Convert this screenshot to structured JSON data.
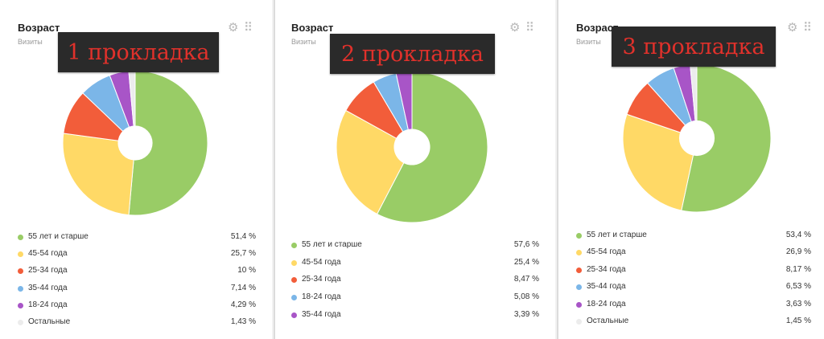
{
  "colors": {
    "green": "#99cc66",
    "yellow": "#ffd966",
    "red": "#f25d3a",
    "blue": "#7bb6e8",
    "purple": "#a855c7",
    "lightgray": "#ececec"
  },
  "chart_data": [
    {
      "type": "pie",
      "title": "Возраст",
      "subtitle": "Визиты",
      "overlay_label": "1 прокладка",
      "legend_position": "bottom",
      "slices": [
        {
          "name": "55 лет и старше",
          "value": 51.4,
          "display": "51,4 %",
          "color": "#99cc66"
        },
        {
          "name": "45-54 года",
          "value": 25.7,
          "display": "25,7 %",
          "color": "#ffd966"
        },
        {
          "name": "25-34 года",
          "value": 10,
          "display": "10 %",
          "color": "#f25d3a"
        },
        {
          "name": "35-44 года",
          "value": 7.14,
          "display": "7,14 %",
          "color": "#7bb6e8"
        },
        {
          "name": "18-24 года",
          "value": 4.29,
          "display": "4,29 %",
          "color": "#a855c7"
        },
        {
          "name": "Остальные",
          "value": 1.43,
          "display": "1,43 %",
          "color": "#ececec"
        }
      ]
    },
    {
      "type": "pie",
      "title": "Возраст",
      "subtitle": "Визиты",
      "overlay_label": "2 прокладка",
      "legend_position": "bottom",
      "slices": [
        {
          "name": "55 лет и старше",
          "value": 57.6,
          "display": "57,6 %",
          "color": "#99cc66"
        },
        {
          "name": "45-54 года",
          "value": 25.4,
          "display": "25,4 %",
          "color": "#ffd966"
        },
        {
          "name": "25-34 года",
          "value": 8.47,
          "display": "8,47 %",
          "color": "#f25d3a"
        },
        {
          "name": "18-24 года",
          "value": 5.08,
          "display": "5,08 %",
          "color": "#7bb6e8"
        },
        {
          "name": "35-44 года",
          "value": 3.39,
          "display": "3,39 %",
          "color": "#a855c7"
        }
      ]
    },
    {
      "type": "pie",
      "title": "Возраст",
      "subtitle": "Визиты",
      "overlay_label": "3 прокладка",
      "legend_position": "bottom",
      "slices": [
        {
          "name": "55 лет и старше",
          "value": 53.4,
          "display": "53,4 %",
          "color": "#99cc66"
        },
        {
          "name": "45-54 года",
          "value": 26.9,
          "display": "26,9 %",
          "color": "#ffd966"
        },
        {
          "name": "25-34 года",
          "value": 8.17,
          "display": "8,17 %",
          "color": "#f25d3a"
        },
        {
          "name": "35-44 года",
          "value": 6.53,
          "display": "6,53 %",
          "color": "#7bb6e8"
        },
        {
          "name": "18-24 года",
          "value": 3.63,
          "display": "3,63 %",
          "color": "#a855c7"
        },
        {
          "name": "Остальные",
          "value": 1.45,
          "display": "1,45 %",
          "color": "#ececec"
        }
      ]
    }
  ]
}
